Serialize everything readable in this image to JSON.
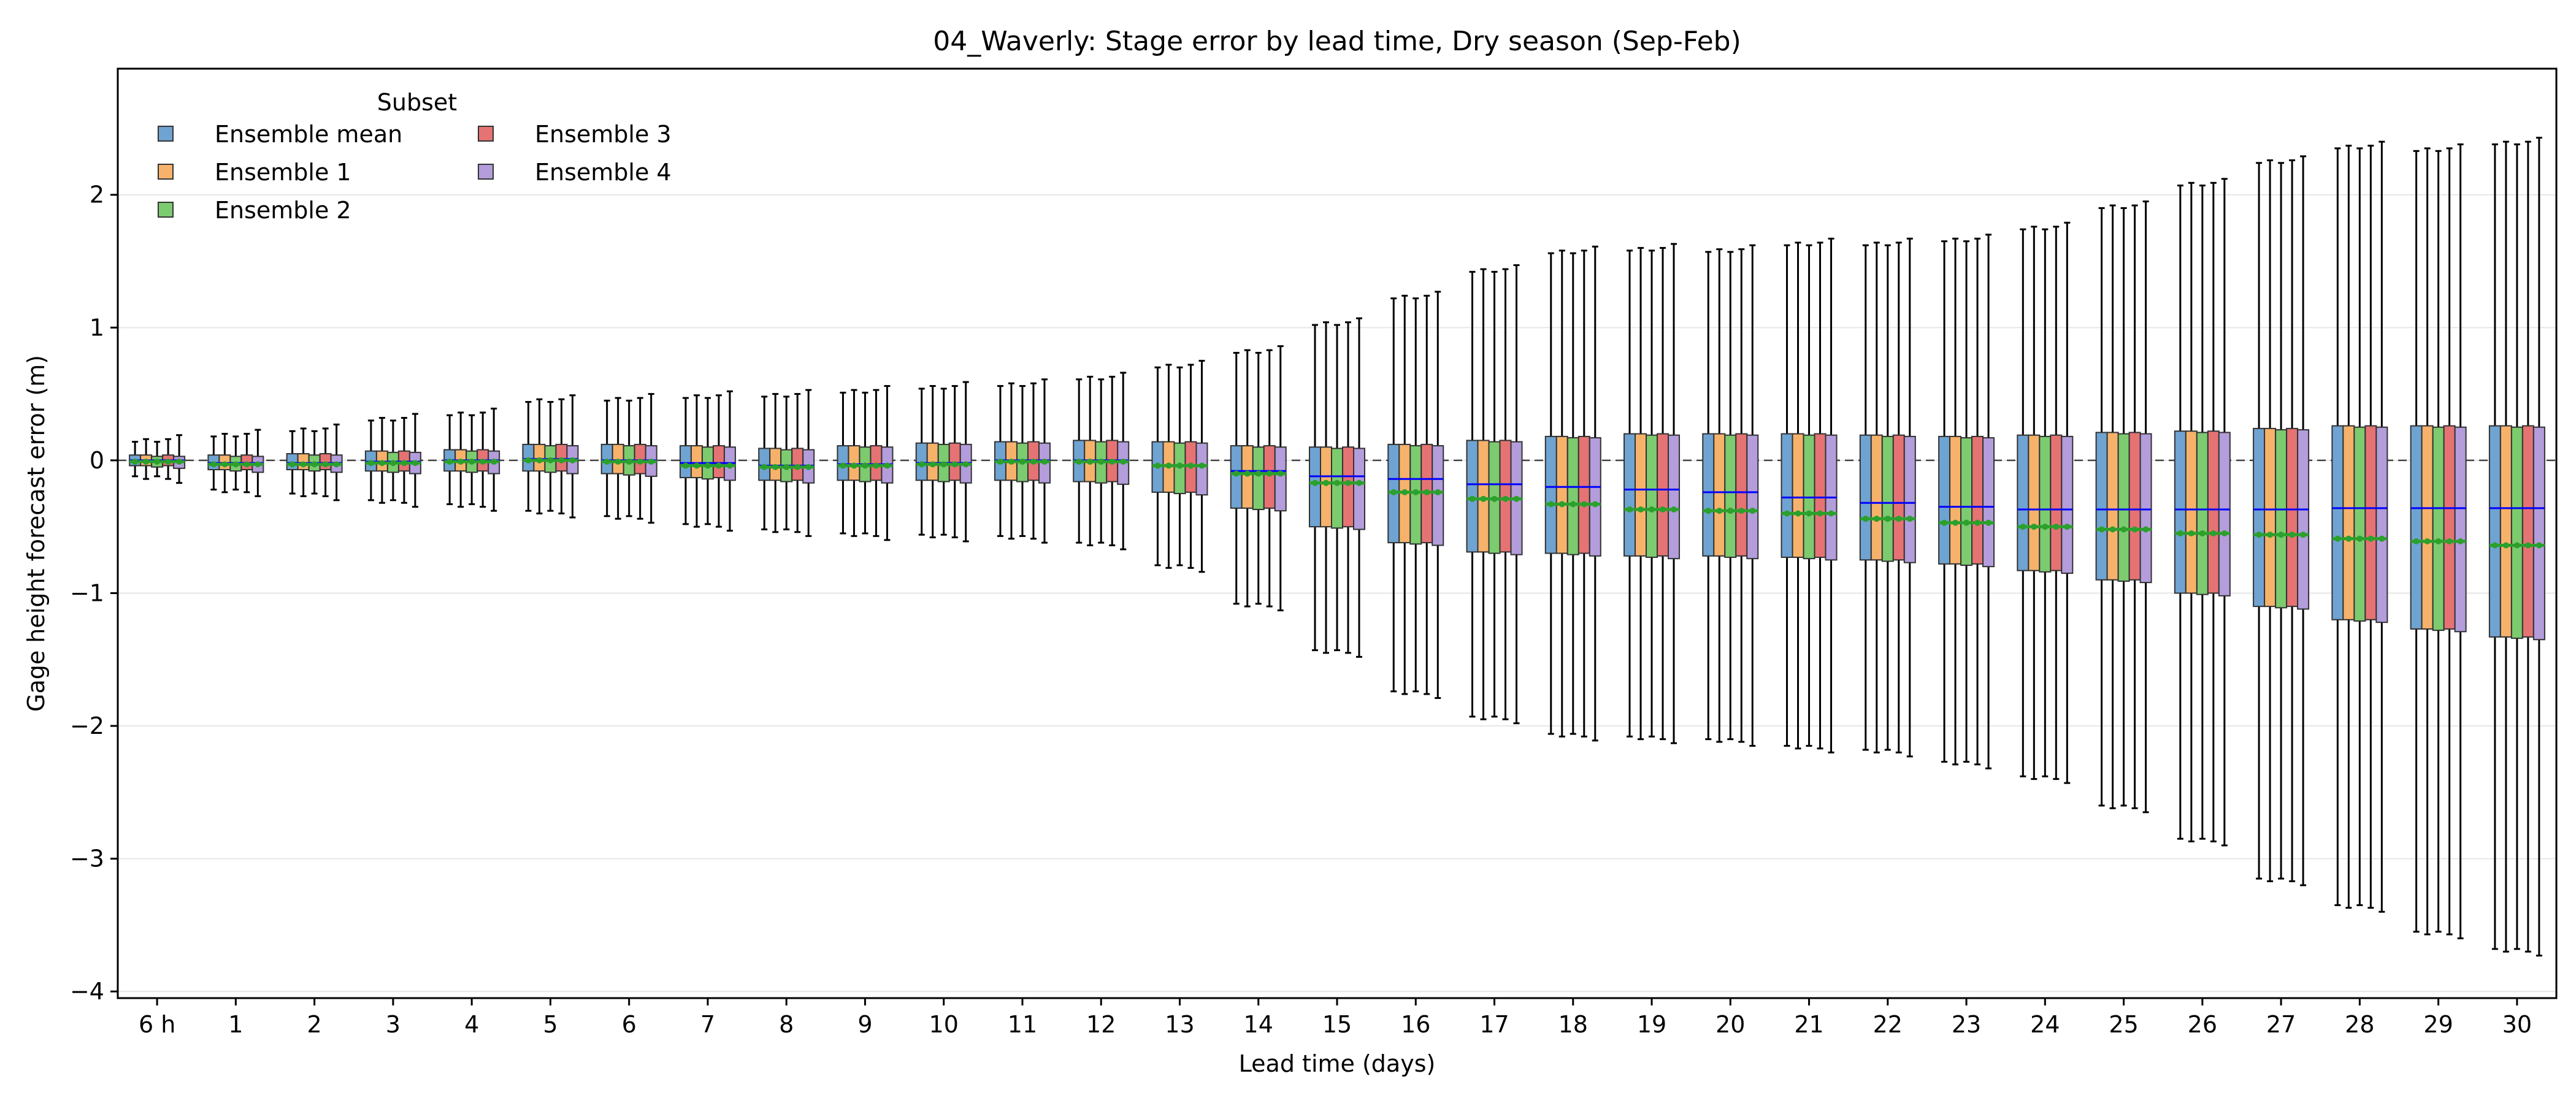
{
  "chart_data": {
    "type": "boxplot",
    "title": "04_Waverly: Stage error by lead time, Dry season (Sep-Feb)",
    "xlabel": "Lead time (days)",
    "ylabel": "Gage height forecast error (m)",
    "ylim": [
      -4.05,
      2.95
    ],
    "yticks": [
      -4,
      -3,
      -2,
      -1,
      0,
      1,
      2
    ],
    "ytick_labels": [
      "−4",
      "−3",
      "−2",
      "−1",
      "0",
      "1",
      "2"
    ],
    "grid": "horizontal",
    "zero_line": {
      "value": 0,
      "style": "dashed"
    },
    "legend": {
      "title": "Subset",
      "position": "top-left",
      "columns": 2,
      "entries": [
        "Ensemble mean",
        "Ensemble 1",
        "Ensemble 2",
        "Ensemble 3",
        "Ensemble 4"
      ]
    },
    "categories": [
      "6 h",
      "1",
      "2",
      "3",
      "4",
      "5",
      "6",
      "7",
      "8",
      "9",
      "10",
      "11",
      "12",
      "13",
      "14",
      "15",
      "16",
      "17",
      "18",
      "19",
      "20",
      "21",
      "22",
      "23",
      "24",
      "25",
      "26",
      "27",
      "28",
      "29",
      "30"
    ],
    "series": [
      {
        "name": "Ensemble mean",
        "color": "#6fa3d1"
      },
      {
        "name": "Ensemble 1",
        "color": "#f6b26b"
      },
      {
        "name": "Ensemble 2",
        "color": "#7ccb6f"
      },
      {
        "name": "Ensemble 3",
        "color": "#e57373"
      },
      {
        "name": "Ensemble 4",
        "color": "#b39ddb"
      }
    ],
    "stats_by_lead": [
      {
        "whislo": -0.12,
        "q1": -0.04,
        "median": 0.0,
        "q3": 0.04,
        "whishi": 0.14,
        "mean": -0.01
      },
      {
        "whislo": -0.22,
        "q1": -0.07,
        "median": -0.02,
        "q3": 0.04,
        "whishi": 0.18,
        "mean": -0.03
      },
      {
        "whislo": -0.25,
        "q1": -0.07,
        "median": -0.02,
        "q3": 0.05,
        "whishi": 0.22,
        "mean": -0.03
      },
      {
        "whislo": -0.3,
        "q1": -0.08,
        "median": -0.01,
        "q3": 0.07,
        "whishi": 0.3,
        "mean": -0.02
      },
      {
        "whislo": -0.33,
        "q1": -0.08,
        "median": 0.0,
        "q3": 0.08,
        "whishi": 0.34,
        "mean": -0.01
      },
      {
        "whislo": -0.38,
        "q1": -0.08,
        "median": 0.01,
        "q3": 0.12,
        "whishi": 0.44,
        "mean": 0.0
      },
      {
        "whislo": -0.42,
        "q1": -0.1,
        "median": 0.0,
        "q3": 0.12,
        "whishi": 0.45,
        "mean": -0.01
      },
      {
        "whislo": -0.48,
        "q1": -0.13,
        "median": -0.02,
        "q3": 0.11,
        "whishi": 0.47,
        "mean": -0.04
      },
      {
        "whislo": -0.52,
        "q1": -0.15,
        "median": -0.04,
        "q3": 0.09,
        "whishi": 0.48,
        "mean": -0.05
      },
      {
        "whislo": -0.55,
        "q1": -0.15,
        "median": -0.03,
        "q3": 0.11,
        "whishi": 0.51,
        "mean": -0.04
      },
      {
        "whislo": -0.56,
        "q1": -0.15,
        "median": -0.02,
        "q3": 0.13,
        "whishi": 0.54,
        "mean": -0.03
      },
      {
        "whislo": -0.57,
        "q1": -0.15,
        "median": 0.0,
        "q3": 0.14,
        "whishi": 0.56,
        "mean": -0.01
      },
      {
        "whislo": -0.62,
        "q1": -0.16,
        "median": 0.0,
        "q3": 0.15,
        "whishi": 0.61,
        "mean": -0.01
      },
      {
        "whislo": -0.79,
        "q1": -0.24,
        "median": -0.04,
        "q3": 0.14,
        "whishi": 0.7,
        "mean": -0.04
      },
      {
        "whislo": -1.08,
        "q1": -0.36,
        "median": -0.08,
        "q3": 0.11,
        "whishi": 0.81,
        "mean": -0.1
      },
      {
        "whislo": -1.43,
        "q1": -0.5,
        "median": -0.12,
        "q3": 0.1,
        "whishi": 1.02,
        "mean": -0.17
      },
      {
        "whislo": -1.74,
        "q1": -0.62,
        "median": -0.14,
        "q3": 0.12,
        "whishi": 1.22,
        "mean": -0.24
      },
      {
        "whislo": -1.93,
        "q1": -0.69,
        "median": -0.18,
        "q3": 0.15,
        "whishi": 1.42,
        "mean": -0.29
      },
      {
        "whislo": -2.06,
        "q1": -0.7,
        "median": -0.2,
        "q3": 0.18,
        "whishi": 1.56,
        "mean": -0.33
      },
      {
        "whislo": -2.08,
        "q1": -0.72,
        "median": -0.22,
        "q3": 0.2,
        "whishi": 1.58,
        "mean": -0.37
      },
      {
        "whislo": -2.1,
        "q1": -0.72,
        "median": -0.24,
        "q3": 0.2,
        "whishi": 1.57,
        "mean": -0.38
      },
      {
        "whislo": -2.15,
        "q1": -0.73,
        "median": -0.28,
        "q3": 0.2,
        "whishi": 1.62,
        "mean": -0.4
      },
      {
        "whislo": -2.18,
        "q1": -0.75,
        "median": -0.32,
        "q3": 0.19,
        "whishi": 1.62,
        "mean": -0.44
      },
      {
        "whislo": -2.27,
        "q1": -0.78,
        "median": -0.35,
        "q3": 0.18,
        "whishi": 1.65,
        "mean": -0.47
      },
      {
        "whislo": -2.38,
        "q1": -0.83,
        "median": -0.37,
        "q3": 0.19,
        "whishi": 1.74,
        "mean": -0.5
      },
      {
        "whislo": -2.6,
        "q1": -0.9,
        "median": -0.37,
        "q3": 0.21,
        "whishi": 1.9,
        "mean": -0.52
      },
      {
        "whislo": -2.85,
        "q1": -1.0,
        "median": -0.37,
        "q3": 0.22,
        "whishi": 2.07,
        "mean": -0.55
      },
      {
        "whislo": -3.15,
        "q1": -1.1,
        "median": -0.37,
        "q3": 0.24,
        "whishi": 2.24,
        "mean": -0.56
      },
      {
        "whislo": -3.35,
        "q1": -1.2,
        "median": -0.36,
        "q3": 0.26,
        "whishi": 2.35,
        "mean": -0.59
      },
      {
        "whislo": -3.55,
        "q1": -1.27,
        "median": -0.36,
        "q3": 0.26,
        "whishi": 2.33,
        "mean": -0.61
      },
      {
        "whislo": -3.68,
        "q1": -1.33,
        "median": -0.36,
        "q3": 0.26,
        "whishi": 2.38,
        "mean": -0.64
      }
    ],
    "subset_offsets": {
      "q1": [
        0,
        0.0,
        -0.01,
        0.0,
        -0.02
      ],
      "q3": [
        0,
        0.0,
        -0.01,
        0.0,
        -0.01
      ],
      "whislo": [
        0,
        -0.02,
        0.0,
        -0.02,
        -0.05
      ],
      "whishi": [
        0,
        0.02,
        0.0,
        0.02,
        0.05
      ]
    },
    "median_line_color": "#0000ff",
    "mean_line_color": "#2ca02c"
  }
}
